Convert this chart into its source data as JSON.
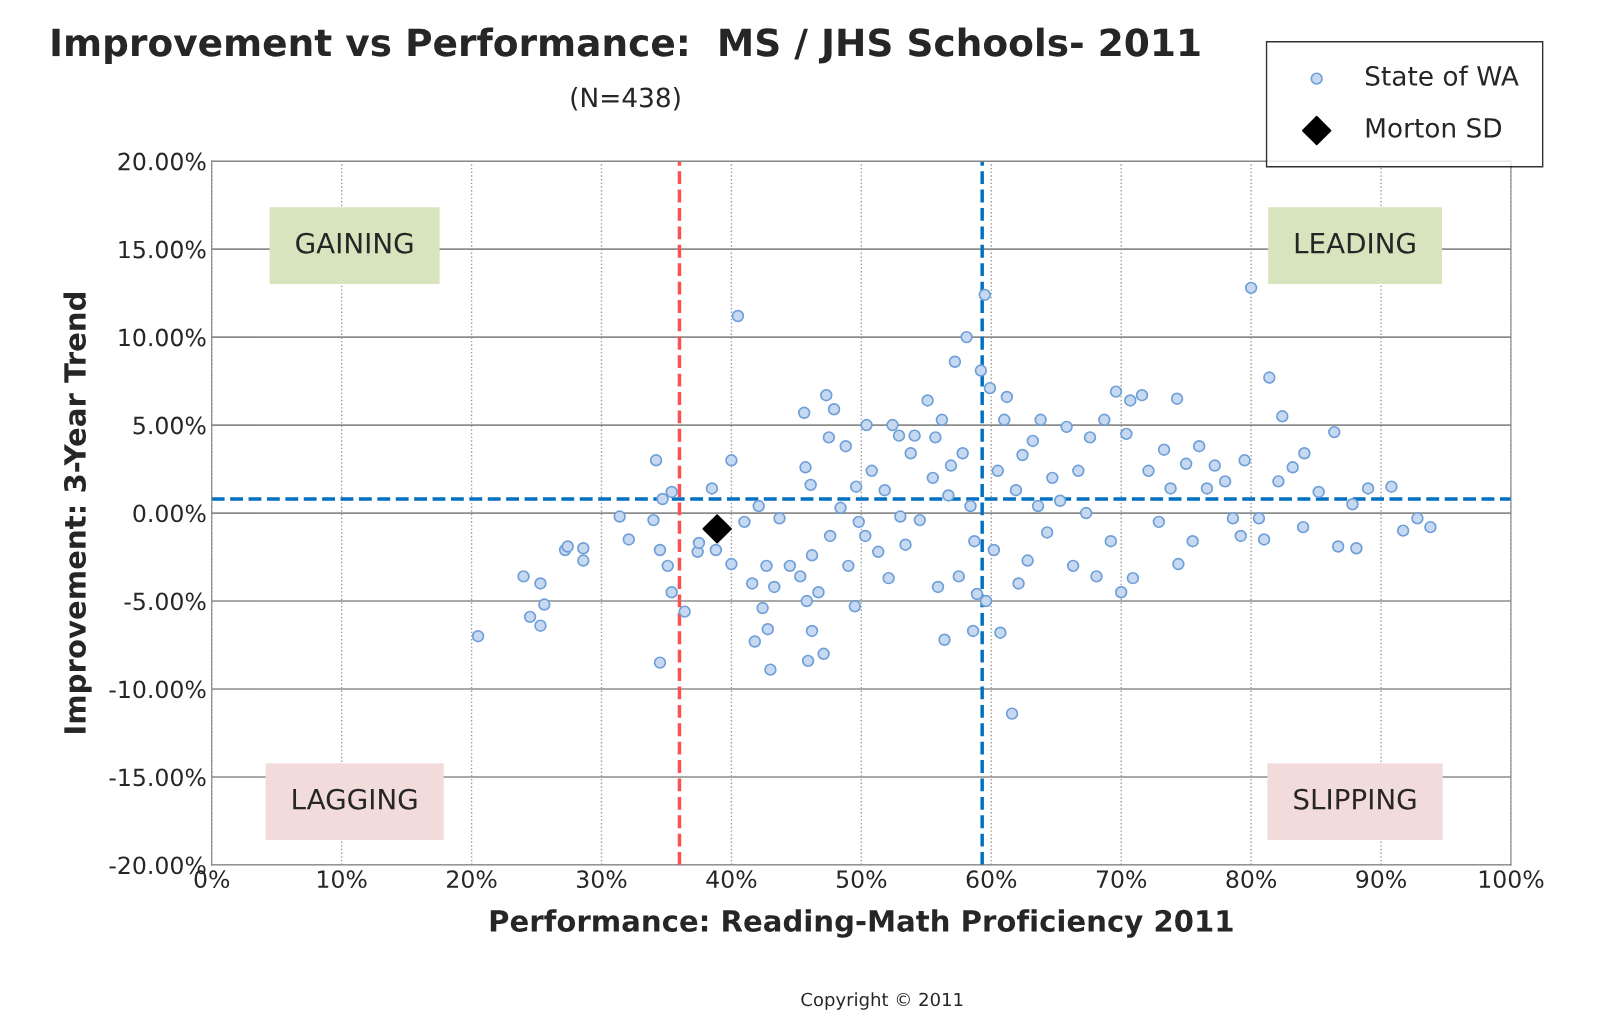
{
  "chart_data": {
    "type": "scatter",
    "title": "Improvement vs Performance:  MS / JHS Schools- 2011",
    "subtitle": "(N=438)",
    "xlabel": "Performance: Reading-Math Proficiency 2011",
    "ylabel": "Improvement: 3-Year Trend",
    "xlim": [
      0,
      100
    ],
    "ylim": [
      -20,
      20
    ],
    "xticks": [
      {
        "value": 0,
        "label": "0%"
      },
      {
        "value": 10,
        "label": "10%"
      },
      {
        "value": 20,
        "label": "20%"
      },
      {
        "value": 30,
        "label": "30%"
      },
      {
        "value": 40,
        "label": "40%"
      },
      {
        "value": 50,
        "label": "50%"
      },
      {
        "value": 60,
        "label": "60%"
      },
      {
        "value": 70,
        "label": "70%"
      },
      {
        "value": 80,
        "label": "80%"
      },
      {
        "value": 90,
        "label": "90%"
      },
      {
        "value": 100,
        "label": "100%"
      }
    ],
    "yticks": [
      {
        "value": -20,
        "label": "-20.00%"
      },
      {
        "value": -15,
        "label": "-15.00%"
      },
      {
        "value": -10,
        "label": "-10.00%"
      },
      {
        "value": -5,
        "label": "-5.00%"
      },
      {
        "value": 0,
        "label": "0.00%"
      },
      {
        "value": 5,
        "label": "5.00%"
      },
      {
        "value": 10,
        "label": "10.00%"
      },
      {
        "value": 15,
        "label": "15.00%"
      },
      {
        "value": 20,
        "label": "20.00%"
      }
    ],
    "grid": true,
    "legend": "top right",
    "series": [
      {
        "name": "State of WA",
        "color": "#c6d9f1",
        "marker": "circle",
        "x": [
          20.5,
          24.0,
          24.5,
          25.3,
          25.3,
          25.6,
          27.2,
          27.4,
          28.6,
          28.6,
          31.4,
          32.1,
          34.0,
          34.2,
          34.5,
          34.5,
          34.7,
          35.1,
          35.4,
          35.4,
          36.4,
          37.4,
          37.5,
          38.5,
          38.8,
          40.0,
          40.0,
          40.5,
          41.0,
          41.6,
          41.8,
          42.1,
          42.4,
          42.7,
          42.8,
          43.0,
          43.3,
          43.7,
          44.5,
          45.3,
          45.6,
          45.7,
          45.8,
          46.1,
          45.9,
          46.2,
          46.2,
          46.7,
          47.1,
          47.3,
          47.5,
          47.9,
          47.6,
          48.4,
          48.8,
          49.0,
          49.5,
          49.6,
          49.8,
          50.3,
          50.4,
          50.8,
          51.3,
          51.8,
          52.1,
          52.4,
          52.9,
          53.0,
          53.4,
          53.8,
          54.1,
          54.5,
          55.1,
          55.5,
          55.7,
          55.9,
          56.2,
          56.4,
          56.7,
          56.9,
          57.2,
          57.5,
          57.8,
          58.1,
          58.4,
          58.6,
          58.7,
          58.9,
          59.2,
          59.5,
          59.6,
          59.9,
          60.2,
          60.5,
          60.7,
          61.0,
          61.2,
          61.6,
          61.9,
          62.1,
          62.4,
          62.8,
          63.2,
          63.6,
          63.8,
          64.3,
          64.7,
          65.3,
          65.8,
          66.3,
          66.7,
          67.3,
          67.6,
          68.1,
          68.7,
          69.2,
          69.6,
          70.0,
          70.4,
          70.7,
          70.9,
          71.6,
          72.1,
          72.9,
          73.3,
          73.8,
          74.3,
          74.4,
          75.0,
          75.5,
          76.0,
          76.6,
          77.2,
          78.0,
          78.6,
          79.2,
          79.5,
          80.0,
          80.6,
          81.0,
          81.4,
          82.1,
          82.4,
          83.2,
          84.0,
          84.1,
          85.2,
          86.4,
          86.7,
          87.8,
          88.1,
          89.0,
          90.8,
          91.7,
          92.8,
          93.8
        ],
        "values": [
          -7.0,
          -3.6,
          -5.9,
          -4.0,
          -6.4,
          -5.2,
          -2.1,
          -1.9,
          -2.0,
          -2.7,
          -0.2,
          -1.5,
          -0.4,
          3.0,
          -2.1,
          -8.5,
          0.8,
          -3.0,
          -4.5,
          1.2,
          -5.6,
          -2.2,
          -1.7,
          1.4,
          -2.1,
          3.0,
          -2.9,
          11.2,
          -0.5,
          -4.0,
          -7.3,
          0.4,
          -5.4,
          -3.0,
          -6.6,
          -8.9,
          -4.2,
          -0.3,
          -3.0,
          -3.6,
          5.7,
          2.6,
          -5.0,
          1.6,
          -8.4,
          -6.7,
          -2.4,
          -4.5,
          -8.0,
          6.7,
          4.3,
          5.9,
          -1.3,
          0.3,
          3.8,
          -3.0,
          -5.3,
          1.5,
          -0.5,
          -1.3,
          5.0,
          2.4,
          -2.2,
          1.3,
          -3.7,
          5.0,
          4.4,
          -0.2,
          -1.8,
          3.4,
          4.4,
          -0.4,
          6.4,
          2.0,
          4.3,
          -4.2,
          5.3,
          -7.2,
          1.0,
          2.7,
          8.6,
          -3.6,
          3.4,
          10.0,
          0.4,
          -6.7,
          -1.6,
          -4.6,
          8.1,
          12.4,
          -5.0,
          7.1,
          -2.1,
          2.4,
          -6.8,
          5.3,
          6.6,
          -11.4,
          1.3,
          -4.0,
          3.3,
          -2.7,
          4.1,
          0.4,
          5.3,
          -1.1,
          2.0,
          0.7,
          4.9,
          -3.0,
          2.4,
          0.0,
          4.3,
          -3.6,
          5.3,
          -1.6,
          6.9,
          -4.5,
          4.5,
          6.4,
          -3.7,
          6.7,
          2.4,
          -0.5,
          3.6,
          1.4,
          6.5,
          -2.9,
          2.8,
          -1.6,
          3.8,
          1.4,
          2.7,
          1.8,
          -0.3,
          -1.3,
          3.0,
          12.8,
          -0.3,
          -1.5,
          7.7,
          1.8,
          5.5,
          2.6,
          -0.8,
          3.4,
          1.2,
          4.6,
          -1.9,
          0.5,
          -2.0,
          1.4,
          1.5,
          -1.0,
          -0.3,
          -0.8
        ]
      },
      {
        "name": "Morton SD",
        "color": "#000000",
        "marker": "diamond",
        "x": [
          38.9
        ],
        "values": [
          -0.9
        ]
      }
    ],
    "ref_lines": [
      {
        "axis": "x",
        "value": 36.0,
        "color": "#ff5050",
        "line_style": "dashed"
      },
      {
        "axis": "x",
        "value": 59.3,
        "color": "#0070c0",
        "line_style": "dashed"
      },
      {
        "axis": "y",
        "value": 0.8,
        "color": "#0070c0",
        "line_style": "dashed"
      }
    ],
    "annotations": [
      "GAINING",
      "LEADING",
      "LAGGING",
      "SLIPPING",
      "Copyright © 2011"
    ]
  }
}
